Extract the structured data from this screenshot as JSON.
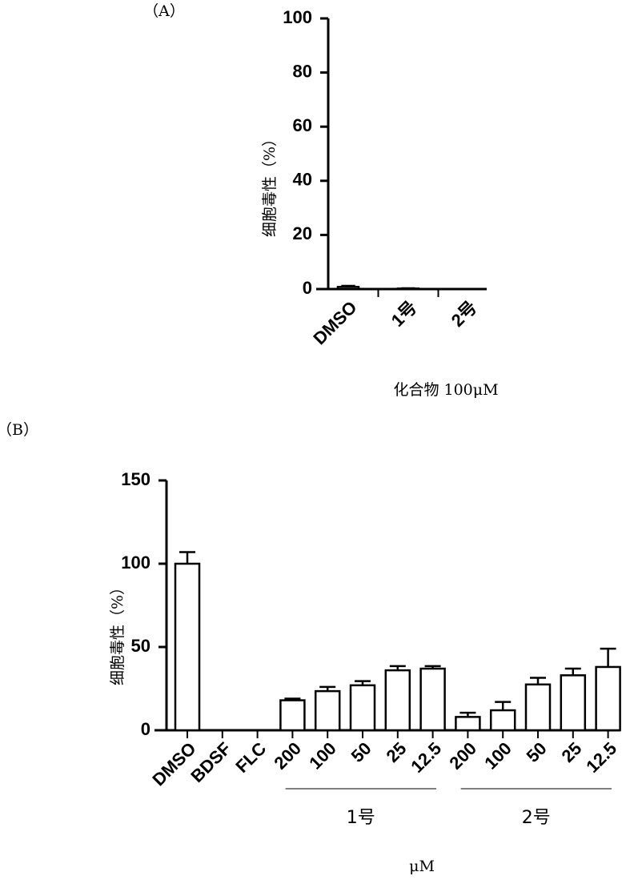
{
  "chart_data": [
    {
      "type": "bar",
      "panel": "（A）",
      "ylabel": "细胞毒性（%）",
      "xlabel": "化合物 100μM",
      "categories": [
        "DMSO",
        "1号",
        "2号"
      ],
      "values": [
        0.8,
        0.2,
        0
      ],
      "errors": [
        0.4,
        0.1,
        0
      ],
      "color": "#ffffff",
      "ylim": [
        0,
        100
      ],
      "yticks": [
        0,
        20,
        40,
        60,
        80,
        100
      ]
    },
    {
      "type": "bar",
      "panel": "（B）",
      "ylabel": "细胞毒性（%）",
      "xlabel": "μM",
      "categories": [
        "DMSO",
        "BDSF",
        "FLC",
        "200",
        "100",
        "50",
        "25",
        "12.5",
        "200",
        "100",
        "50",
        "25",
        "12.5"
      ],
      "values": [
        100,
        0,
        0,
        18,
        23.5,
        27,
        36,
        37,
        8,
        12,
        27.5,
        33,
        38
      ],
      "errors": [
        7,
        0,
        0,
        1,
        2.5,
        2.5,
        2.5,
        1.5,
        2.5,
        5,
        4,
        4,
        11
      ],
      "groups": [
        "1号",
        "2号"
      ],
      "color": "#ffffff",
      "ylim": [
        0,
        150
      ],
      "yticks": [
        0,
        50,
        100,
        150
      ]
    }
  ]
}
